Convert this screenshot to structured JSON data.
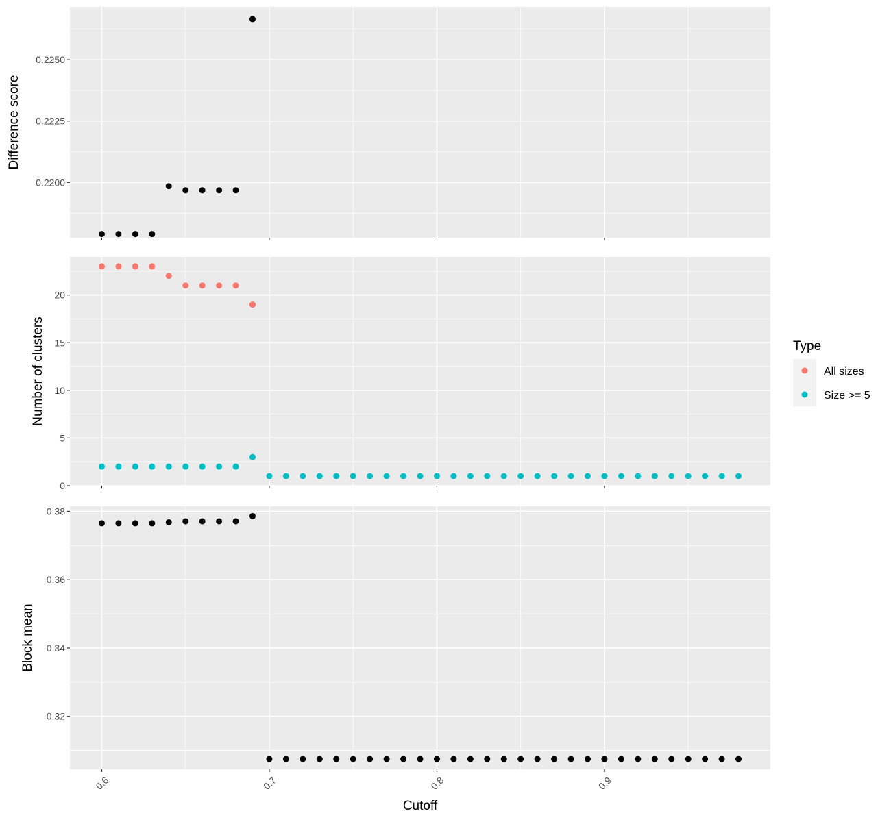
{
  "figure": {
    "x_label": "Cutoff",
    "x_ticks": [
      0.6,
      0.7,
      0.8,
      0.9
    ],
    "x_tick_labels": [
      "0.6",
      "0.7",
      "0.8",
      "0.9"
    ]
  },
  "legend": {
    "title": "Type",
    "entries": [
      {
        "label": "All sizes",
        "color": "#F8766D"
      },
      {
        "label": "Size >= 5",
        "color": "#00BFC4"
      }
    ]
  },
  "colors": {
    "panel_bg": "#EBEBEB",
    "grid": "#FFFFFF",
    "point_default": "#000000"
  },
  "chart_data": [
    {
      "type": "scatter",
      "title": "",
      "xlabel": "Cutoff",
      "ylabel": "Difference score",
      "xlim": [
        0.581,
        0.999
      ],
      "ylim": [
        0.21775,
        0.22715
      ],
      "yticks": [
        0.22,
        0.2225,
        0.225
      ],
      "ytick_labels": [
        "0.2200",
        "0.2225",
        "0.2250"
      ],
      "grid": true,
      "series": [
        {
          "x": [
            0.6,
            0.61,
            0.62,
            0.63,
            0.64,
            0.65,
            0.66,
            0.67,
            0.68,
            0.69
          ],
          "y": [
            0.2179,
            0.2179,
            0.2179,
            0.2179,
            0.21985,
            0.21968,
            0.21968,
            0.21968,
            0.21968,
            0.22665
          ]
        }
      ]
    },
    {
      "type": "scatter",
      "title": "",
      "xlabel": "Cutoff",
      "ylabel": "Number of clusters",
      "xlim": [
        0.581,
        0.999
      ],
      "ylim": [
        0,
        24
      ],
      "yticks": [
        0,
        5,
        10,
        15,
        20
      ],
      "ytick_labels": [
        "0",
        "5",
        "10",
        "15",
        "20"
      ],
      "grid": true,
      "legend": "right",
      "series": [
        {
          "name": "All sizes",
          "color": "#F8766D",
          "x": [
            0.6,
            0.61,
            0.62,
            0.63,
            0.64,
            0.65,
            0.66,
            0.67,
            0.68,
            0.69
          ],
          "y": [
            23,
            23,
            23,
            23,
            22,
            21,
            21,
            21,
            21,
            19
          ]
        },
        {
          "name": "Size >= 5",
          "color": "#00BFC4",
          "x": [
            0.6,
            0.61,
            0.62,
            0.63,
            0.64,
            0.65,
            0.66,
            0.67,
            0.68,
            0.69,
            0.7,
            0.71,
            0.72,
            0.73,
            0.74,
            0.75,
            0.76,
            0.77,
            0.78,
            0.79,
            0.8,
            0.81,
            0.82,
            0.83,
            0.84,
            0.85,
            0.86,
            0.87,
            0.88,
            0.89,
            0.9,
            0.91,
            0.92,
            0.93,
            0.94,
            0.95,
            0.96,
            0.97,
            0.98
          ],
          "y": [
            2,
            2,
            2,
            2,
            2,
            2,
            2,
            2,
            2,
            3,
            1,
            1,
            1,
            1,
            1,
            1,
            1,
            1,
            1,
            1,
            1,
            1,
            1,
            1,
            1,
            1,
            1,
            1,
            1,
            1,
            1,
            1,
            1,
            1,
            1,
            1,
            1,
            1,
            1
          ]
        }
      ]
    },
    {
      "type": "scatter",
      "title": "",
      "xlabel": "Cutoff",
      "ylabel": "Block mean",
      "xlim": [
        0.581,
        0.999
      ],
      "ylim": [
        0.3045,
        0.3815
      ],
      "yticks": [
        0.32,
        0.34,
        0.36,
        0.38
      ],
      "ytick_labels": [
        "0.32",
        "0.34",
        "0.36",
        "0.38"
      ],
      "grid": true,
      "series": [
        {
          "x": [
            0.6,
            0.61,
            0.62,
            0.63,
            0.64,
            0.65,
            0.66,
            0.67,
            0.68,
            0.69,
            0.7,
            0.71,
            0.72,
            0.73,
            0.74,
            0.75,
            0.76,
            0.77,
            0.78,
            0.79,
            0.8,
            0.81,
            0.82,
            0.83,
            0.84,
            0.85,
            0.86,
            0.87,
            0.88,
            0.89,
            0.9,
            0.91,
            0.92,
            0.93,
            0.94,
            0.95,
            0.96,
            0.97,
            0.98
          ],
          "y": [
            0.3765,
            0.3765,
            0.3765,
            0.3765,
            0.3768,
            0.3771,
            0.3771,
            0.3771,
            0.3771,
            0.3786,
            0.3075,
            0.3075,
            0.3075,
            0.3075,
            0.3075,
            0.3075,
            0.3075,
            0.3075,
            0.3075,
            0.3075,
            0.3075,
            0.3075,
            0.3075,
            0.3075,
            0.3075,
            0.3075,
            0.3075,
            0.3075,
            0.3075,
            0.3075,
            0.3075,
            0.3075,
            0.3075,
            0.3075,
            0.3075,
            0.3075,
            0.3075,
            0.3075,
            0.3075
          ]
        }
      ]
    }
  ]
}
